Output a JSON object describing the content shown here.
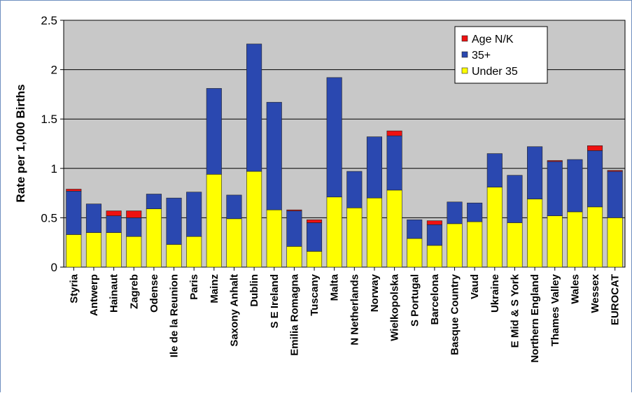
{
  "chart_data": {
    "type": "bar",
    "stacked": true,
    "ylabel": "Rate per 1,000 Births",
    "ylim": [
      0,
      2.5
    ],
    "yticks": [
      "0",
      "0.5",
      "1",
      "1.5",
      "2",
      "2.5"
    ],
    "grid": true,
    "legend_position": "top-right",
    "categories": [
      "Styria",
      "Antwerp",
      "Hainaut",
      "Zagreb",
      "Odense",
      "Ile de la Reunion",
      "Paris",
      "Mainz",
      "Saxony Anhalt",
      "Dublin",
      "S E Ireland",
      "Emilia Romagna",
      "Tuscany",
      "Malta",
      "N Netherlands",
      "Norway",
      "Wielkopolska",
      "S Portugal",
      "Barcelona",
      "Basque Country",
      "Vaud",
      "Ukraine",
      "E Mid & S York",
      "Northern England",
      "Thames Valley",
      "Wales",
      "Wessex",
      "EUROCAT"
    ],
    "series": [
      {
        "name": "Under 35",
        "color": "#ffff00",
        "values": [
          0.33,
          0.35,
          0.35,
          0.31,
          0.59,
          0.23,
          0.31,
          0.94,
          0.49,
          0.97,
          0.58,
          0.21,
          0.16,
          0.71,
          0.6,
          0.7,
          0.78,
          0.29,
          0.22,
          0.44,
          0.46,
          0.81,
          0.45,
          0.69,
          0.52,
          0.56,
          0.61,
          0.5
        ]
      },
      {
        "name": "35+",
        "color": "#2a48b0",
        "values": [
          0.44,
          0.29,
          0.17,
          0.19,
          0.15,
          0.47,
          0.45,
          0.87,
          0.24,
          1.29,
          1.09,
          0.36,
          0.29,
          1.21,
          0.37,
          0.62,
          0.55,
          0.19,
          0.21,
          0.22,
          0.19,
          0.34,
          0.48,
          0.53,
          0.55,
          0.53,
          0.57,
          0.47
        ]
      },
      {
        "name": "Age N/K",
        "color": "#ee1111",
        "values": [
          0.02,
          0.0,
          0.05,
          0.07,
          0.0,
          0.0,
          0.0,
          0.0,
          0.0,
          0.0,
          0.0,
          0.01,
          0.03,
          0.0,
          0.0,
          0.0,
          0.05,
          0.0,
          0.04,
          0.0,
          0.0,
          0.0,
          0.0,
          0.0,
          0.01,
          0.0,
          0.05,
          0.01
        ]
      }
    ],
    "legend_order": [
      "Age N/K",
      "35+",
      "Under 35"
    ]
  }
}
